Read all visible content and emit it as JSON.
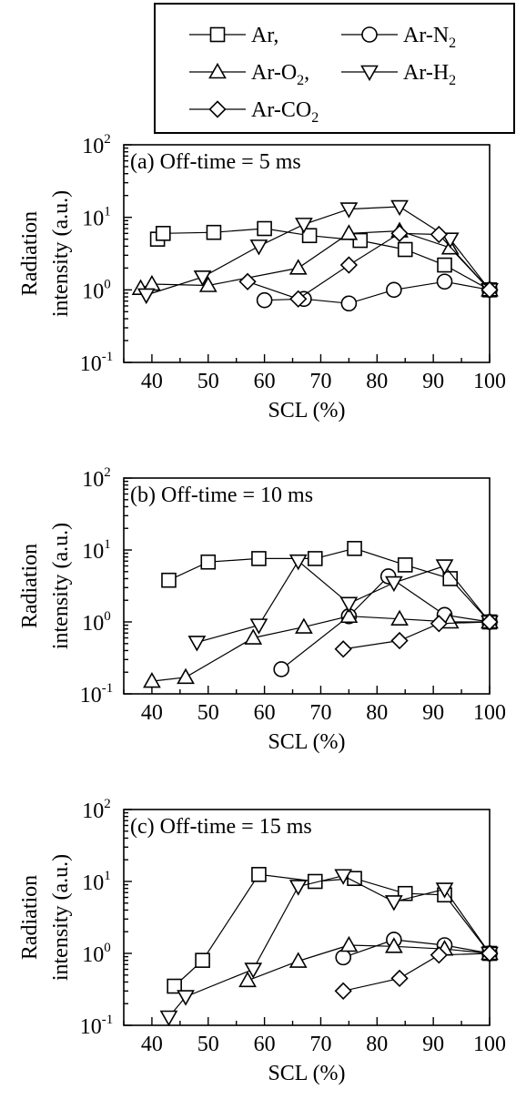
{
  "legend": {
    "entries": [
      {
        "label": "Ar,",
        "marker": "square"
      },
      {
        "label": "Ar-N",
        "sub": "2",
        "marker": "circle"
      },
      {
        "label": "Ar-O",
        "sub": "2",
        "suffix": ",",
        "marker": "triangle-up"
      },
      {
        "label": "Ar-H",
        "sub": "2",
        "marker": "triangle-down"
      },
      {
        "label": "Ar-CO",
        "sub": "2",
        "marker": "diamond"
      }
    ]
  },
  "chart_data": [
    {
      "type": "line",
      "title": "(a) Off-time = 5 ms",
      "xlabel": "SCL (%)",
      "ylabel": [
        "Radiation",
        "intensity (a.u.)"
      ],
      "yscale": "log",
      "xlim": [
        35,
        100
      ],
      "ylim": [
        0.1,
        100
      ],
      "xticks": [
        40,
        50,
        60,
        70,
        80,
        90,
        100
      ],
      "yticks": [
        {
          "base": "10",
          "exp": "-1"
        },
        {
          "base": "10",
          "exp": "0"
        },
        {
          "base": "10",
          "exp": "1"
        },
        {
          "base": "10",
          "exp": "2"
        }
      ],
      "series": [
        {
          "name": "Ar",
          "marker": "square",
          "points": [
            [
              41,
              5.0
            ],
            [
              42,
              6.0
            ],
            [
              51,
              6.2
            ],
            [
              60,
              7.0
            ],
            [
              68,
              5.6
            ],
            [
              77,
              4.8
            ],
            [
              85,
              3.6
            ],
            [
              92,
              2.2
            ],
            [
              100,
              1.0
            ]
          ]
        },
        {
          "name": "Ar-N2",
          "marker": "circle",
          "points": [
            [
              60,
              0.72
            ],
            [
              67,
              0.75
            ],
            [
              75,
              0.65
            ],
            [
              83,
              1.0
            ],
            [
              92,
              1.3
            ],
            [
              100,
              1.0
            ]
          ]
        },
        {
          "name": "Ar-O2",
          "marker": "triangle-up",
          "points": [
            [
              38,
              1.05
            ],
            [
              40,
              1.2
            ],
            [
              50,
              1.15
            ],
            [
              66,
              2.0
            ],
            [
              75,
              6.0
            ],
            [
              84,
              6.5
            ],
            [
              93,
              3.8
            ],
            [
              100,
              1.0
            ]
          ]
        },
        {
          "name": "Ar-H2",
          "marker": "triangle-down",
          "points": [
            [
              39,
              0.85
            ],
            [
              49,
              1.5
            ],
            [
              59,
              4.0
            ],
            [
              67,
              8.0
            ],
            [
              75,
              13.0
            ],
            [
              84,
              14.0
            ],
            [
              93,
              5.0
            ],
            [
              100,
              1.0
            ]
          ]
        },
        {
          "name": "Ar-CO2",
          "marker": "diamond",
          "points": [
            [
              57,
              1.3
            ],
            [
              66,
              0.75
            ],
            [
              75,
              2.2
            ],
            [
              84,
              6.0
            ],
            [
              91,
              5.8
            ],
            [
              100,
              1.0
            ]
          ]
        }
      ]
    },
    {
      "type": "line",
      "title": "(b) Off-time = 10 ms",
      "xlabel": "SCL (%)",
      "ylabel": [
        "Radiation",
        "intensity (a.u.)"
      ],
      "yscale": "log",
      "xlim": [
        35,
        100
      ],
      "ylim": [
        0.1,
        100
      ],
      "xticks": [
        40,
        50,
        60,
        70,
        80,
        90,
        100
      ],
      "yticks": [
        {
          "base": "10",
          "exp": "-1"
        },
        {
          "base": "10",
          "exp": "0"
        },
        {
          "base": "10",
          "exp": "1"
        },
        {
          "base": "10",
          "exp": "2"
        }
      ],
      "series": [
        {
          "name": "Ar",
          "marker": "square",
          "points": [
            [
              43,
              3.8
            ],
            [
              50,
              6.8
            ],
            [
              59,
              7.6
            ],
            [
              69,
              7.6
            ],
            [
              76,
              10.5
            ],
            [
              85,
              6.2
            ],
            [
              93,
              4.0
            ],
            [
              100,
              1.0
            ]
          ]
        },
        {
          "name": "Ar-N2",
          "marker": "circle",
          "points": [
            [
              63,
              0.22
            ],
            [
              75,
              1.2
            ],
            [
              82,
              4.3
            ],
            [
              92,
              1.25
            ],
            [
              100,
              1.0
            ]
          ]
        },
        {
          "name": "Ar-O2",
          "marker": "triangle-up",
          "points": [
            [
              40,
              0.15
            ],
            [
              46,
              0.17
            ],
            [
              58,
              0.6
            ],
            [
              67,
              0.85
            ],
            [
              75,
              1.2
            ],
            [
              84,
              1.1
            ],
            [
              93,
              1.0
            ],
            [
              100,
              1.0
            ]
          ]
        },
        {
          "name": "Ar-H2",
          "marker": "triangle-down",
          "points": [
            [
              48,
              0.52
            ],
            [
              59,
              0.9
            ],
            [
              66,
              7.0
            ],
            [
              75,
              1.8
            ],
            [
              83,
              3.5
            ],
            [
              92,
              6.0
            ],
            [
              100,
              1.0
            ]
          ]
        },
        {
          "name": "Ar-CO2",
          "marker": "diamond",
          "points": [
            [
              74,
              0.42
            ],
            [
              84,
              0.55
            ],
            [
              91,
              0.95
            ],
            [
              100,
              1.0
            ]
          ]
        }
      ]
    },
    {
      "type": "line",
      "title": "(c) Off-time = 15 ms",
      "xlabel": "SCL (%)",
      "ylabel": [
        "Radiation",
        "intensity (a.u.)"
      ],
      "yscale": "log",
      "xlim": [
        35,
        100
      ],
      "ylim": [
        0.1,
        100
      ],
      "xticks": [
        40,
        50,
        60,
        70,
        80,
        90,
        100
      ],
      "yticks": [
        {
          "base": "10",
          "exp": "-1"
        },
        {
          "base": "10",
          "exp": "0"
        },
        {
          "base": "10",
          "exp": "1"
        },
        {
          "base": "10",
          "exp": "2"
        }
      ],
      "series": [
        {
          "name": "Ar",
          "marker": "square",
          "points": [
            [
              44,
              0.35
            ],
            [
              49,
              0.8
            ],
            [
              59,
              12.5
            ],
            [
              69,
              10.0
            ],
            [
              76,
              11.0
            ],
            [
              85,
              6.8
            ],
            [
              92,
              6.5
            ],
            [
              100,
              1.0
            ]
          ]
        },
        {
          "name": "Ar-N2",
          "marker": "circle",
          "points": [
            [
              74,
              0.88
            ],
            [
              83,
              1.55
            ],
            [
              92,
              1.3
            ],
            [
              100,
              1.0
            ]
          ]
        },
        {
          "name": "Ar-O2",
          "marker": "triangle-up",
          "points": [
            [
              57,
              0.42
            ],
            [
              66,
              0.78
            ],
            [
              75,
              1.3
            ],
            [
              83,
              1.25
            ],
            [
              92,
              1.15
            ],
            [
              100,
              1.0
            ]
          ]
        },
        {
          "name": "Ar-H2",
          "marker": "triangle-down",
          "points": [
            [
              43,
              0.13
            ],
            [
              46,
              0.25
            ],
            [
              58,
              0.6
            ],
            [
              66,
              8.5
            ],
            [
              74,
              12.0
            ],
            [
              83,
              5.2
            ],
            [
              92,
              7.8
            ],
            [
              100,
              1.0
            ]
          ]
        },
        {
          "name": "Ar-CO2",
          "marker": "diamond",
          "points": [
            [
              74,
              0.3
            ],
            [
              84,
              0.45
            ],
            [
              91,
              0.95
            ],
            [
              100,
              1.0
            ]
          ]
        }
      ]
    }
  ]
}
